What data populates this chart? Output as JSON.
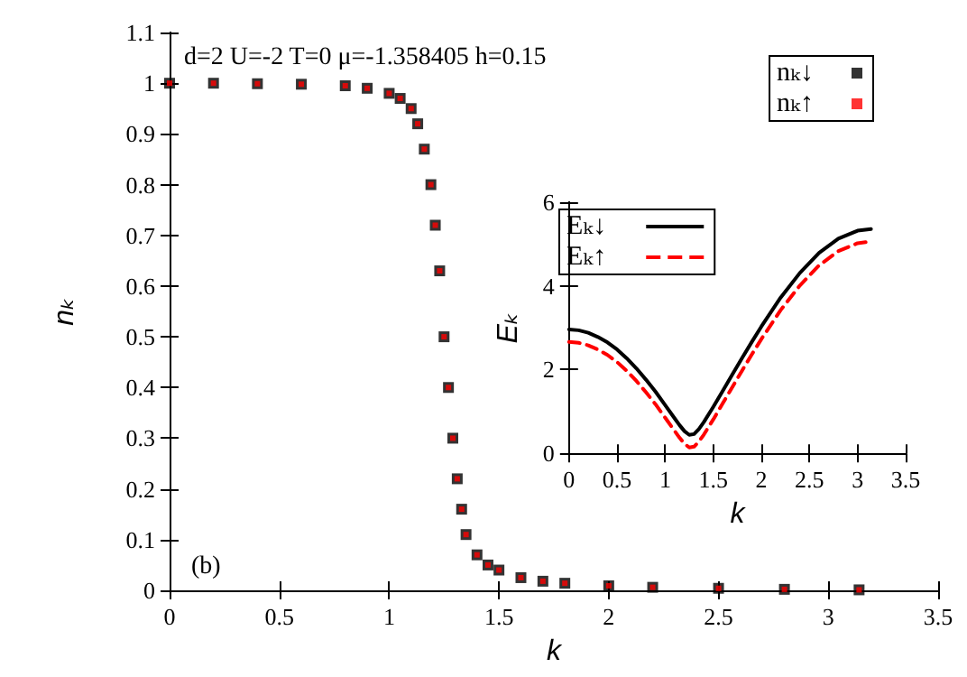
{
  "chart_data": [
    {
      "type": "scatter",
      "xlabel": "k",
      "ylabel": "nₖ",
      "xlim": [
        0,
        3.5
      ],
      "xticks": [
        0,
        0.5,
        1,
        1.5,
        2,
        2.5,
        3,
        3.5
      ],
      "ylim": [
        0,
        1.1
      ],
      "yticks": [
        0,
        0.1,
        0.2,
        0.3,
        0.4,
        0.5,
        0.6,
        0.7,
        0.8,
        0.9,
        1,
        1.1
      ],
      "grid": false,
      "legend": "top right",
      "marker": "square",
      "annotations": [
        "d=2 U=-2 T=0 μ=-1.358405 h=0.15",
        "(b)"
      ],
      "x": [
        0,
        0.2,
        0.4,
        0.6,
        0.8,
        0.9,
        1.0,
        1.05,
        1.1,
        1.13,
        1.16,
        1.19,
        1.21,
        1.23,
        1.25,
        1.27,
        1.29,
        1.31,
        1.33,
        1.35,
        1.4,
        1.45,
        1.5,
        1.6,
        1.7,
        1.8,
        2.0,
        2.2,
        2.5,
        2.8,
        3.14
      ],
      "series": [
        {
          "name": "nₖ↓",
          "color": "#000000",
          "values": [
            1.0,
            1.0,
            0.999,
            0.998,
            0.995,
            0.99,
            0.98,
            0.97,
            0.95,
            0.92,
            0.87,
            0.8,
            0.72,
            0.63,
            0.5,
            0.4,
            0.3,
            0.22,
            0.16,
            0.11,
            0.07,
            0.05,
            0.04,
            0.025,
            0.018,
            0.014,
            0.009,
            0.006,
            0.004,
            0.002,
            0.001
          ]
        },
        {
          "name": "nₖ↑",
          "color": "#ff0000",
          "values": [
            1.0,
            1.0,
            0.999,
            0.998,
            0.995,
            0.99,
            0.98,
            0.97,
            0.95,
            0.92,
            0.87,
            0.8,
            0.72,
            0.63,
            0.5,
            0.4,
            0.3,
            0.22,
            0.16,
            0.11,
            0.07,
            0.05,
            0.04,
            0.025,
            0.018,
            0.014,
            0.009,
            0.006,
            0.004,
            0.002,
            0.001
          ]
        }
      ]
    },
    {
      "type": "line",
      "xlabel": "k",
      "ylabel": "Eₖ",
      "xlim": [
        0,
        3.5
      ],
      "xticks": [
        0,
        0.5,
        1,
        1.5,
        2,
        2.5,
        3,
        3.5
      ],
      "ylim": [
        0,
        6
      ],
      "yticks": [
        0,
        2,
        4,
        6
      ],
      "grid": false,
      "legend": "top left",
      "marker": "none",
      "x": [
        0,
        0.1,
        0.2,
        0.3,
        0.4,
        0.5,
        0.6,
        0.7,
        0.8,
        0.9,
        1.0,
        1.1,
        1.15,
        1.2,
        1.25,
        1.3,
        1.35,
        1.4,
        1.5,
        1.6,
        1.7,
        1.8,
        1.9,
        2.0,
        2.2,
        2.4,
        2.6,
        2.8,
        3.0,
        3.14
      ],
      "series": [
        {
          "name": "Eₖ↓",
          "color": "#000000",
          "line_style": "solid",
          "values": [
            2.96,
            2.94,
            2.88,
            2.78,
            2.65,
            2.48,
            2.27,
            2.03,
            1.76,
            1.47,
            1.15,
            0.83,
            0.67,
            0.53,
            0.44,
            0.46,
            0.58,
            0.74,
            1.11,
            1.5,
            1.89,
            2.28,
            2.66,
            3.03,
            3.72,
            4.31,
            4.79,
            5.13,
            5.32,
            5.36
          ]
        },
        {
          "name": "Eₖ↑",
          "color": "#ff0000",
          "line_style": "dashed",
          "values": [
            2.66,
            2.64,
            2.58,
            2.48,
            2.35,
            2.18,
            1.97,
            1.73,
            1.46,
            1.17,
            0.85,
            0.53,
            0.37,
            0.23,
            0.14,
            0.16,
            0.28,
            0.44,
            0.81,
            1.2,
            1.59,
            1.98,
            2.36,
            2.73,
            3.42,
            4.01,
            4.49,
            4.83,
            5.02,
            5.06
          ]
        }
      ]
    }
  ]
}
